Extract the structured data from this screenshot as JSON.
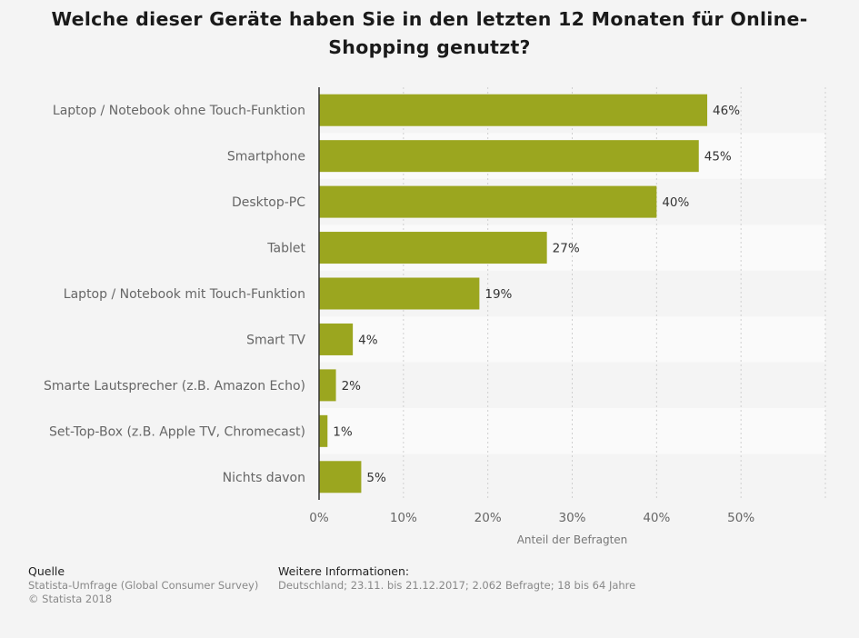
{
  "chart_data": {
    "type": "bar",
    "orientation": "horizontal",
    "title": "Welche dieser Geräte haben Sie in den letzten 12 Monaten für Online-Shopping genutzt?",
    "categories": [
      "Laptop / Notebook ohne Touch-Funktion",
      "Smartphone",
      "Desktop-PC",
      "Tablet",
      "Laptop / Notebook mit Touch-Funktion",
      "Smart TV",
      "Smarte Lautsprecher (z.B. Amazon Echo)",
      "Set-Top-Box (z.B. Apple TV, Chromecast)",
      "Nichts davon"
    ],
    "values": [
      46,
      45,
      40,
      27,
      19,
      4,
      2,
      1,
      5
    ],
    "value_labels": [
      "46%",
      "45%",
      "40%",
      "27%",
      "19%",
      "4%",
      "2%",
      "1%",
      "5%"
    ],
    "xlim": [
      0,
      60
    ],
    "xticks": [
      0,
      10,
      20,
      30,
      40,
      50
    ],
    "xtick_labels": [
      "0%",
      "10%",
      "20%",
      "30%",
      "40%",
      "50%"
    ],
    "xlabel": "Anteil der Befragten",
    "ylabel": "",
    "grid": true,
    "bar_color": "#9ba61f"
  },
  "footer": {
    "source_heading": "Quelle",
    "source_line1": "Statista-Umfrage (Global Consumer Survey)",
    "source_line2": "© Statista 2018",
    "info_heading": "Weitere Informationen:",
    "info_line": "Deutschland; 23.11. bis 21.12.2017; 2.062 Befragte; 18 bis 64 Jahre"
  }
}
